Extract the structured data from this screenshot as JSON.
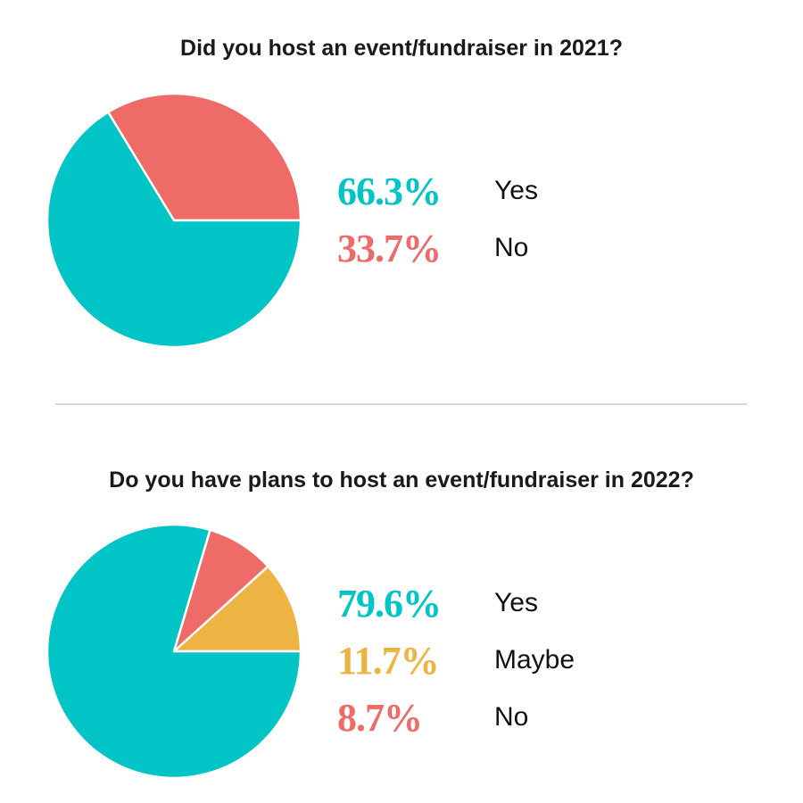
{
  "chart_data": [
    {
      "type": "pie",
      "title": "Did you host an event/fundraiser in 2021?",
      "slices": [
        {
          "label": "Yes",
          "value": 66.3,
          "value_text": "66.3%",
          "color": "#00C4C6"
        },
        {
          "label": "No",
          "value": 33.7,
          "value_text": "33.7%",
          "color": "#EE6B68"
        }
      ]
    },
    {
      "type": "pie",
      "title": "Do you have plans to host an event/fundraiser in 2022?",
      "slices": [
        {
          "label": "Yes",
          "value": 79.6,
          "value_text": "79.6%",
          "color": "#00C4C6"
        },
        {
          "label": "Maybe",
          "value": 11.7,
          "value_text": "11.7%",
          "color": "#EDB443"
        },
        {
          "label": "No",
          "value": 8.7,
          "value_text": "8.7%",
          "color": "#EE6B68"
        }
      ]
    }
  ]
}
